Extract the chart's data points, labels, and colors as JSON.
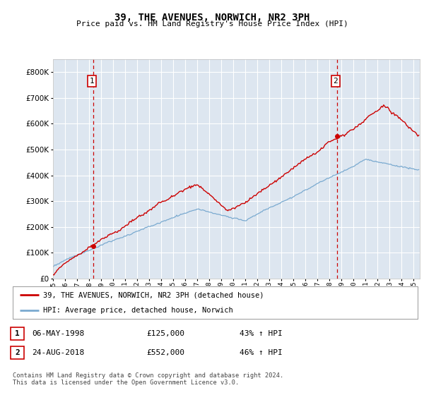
{
  "title": "39, THE AVENUES, NORWICH, NR2 3PH",
  "subtitle": "Price paid vs. HM Land Registry's House Price Index (HPI)",
  "ylim": [
    0,
    850000
  ],
  "yticks": [
    0,
    100000,
    200000,
    300000,
    400000,
    500000,
    600000,
    700000,
    800000
  ],
  "xlim_start": 1995.0,
  "xlim_end": 2025.5,
  "bg_color": "#dde6f0",
  "grid_color": "#ffffff",
  "property_color": "#cc0000",
  "hpi_color": "#7aaad0",
  "annotation_box_color": "#cc0000",
  "sale1_x": 1998.37,
  "sale1_y": 125000,
  "sale1_label": "1",
  "sale1_date": "06-MAY-1998",
  "sale1_price": "£125,000",
  "sale1_hpi": "43% ↑ HPI",
  "sale2_x": 2018.65,
  "sale2_y": 552000,
  "sale2_label": "2",
  "sale2_date": "24-AUG-2018",
  "sale2_price": "£552,000",
  "sale2_hpi": "46% ↑ HPI",
  "legend_property": "39, THE AVENUES, NORWICH, NR2 3PH (detached house)",
  "legend_hpi": "HPI: Average price, detached house, Norwich",
  "footer": "Contains HM Land Registry data © Crown copyright and database right 2024.\nThis data is licensed under the Open Government Licence v3.0.",
  "xticks": [
    1995,
    1996,
    1997,
    1998,
    1999,
    2000,
    2001,
    2002,
    2003,
    2004,
    2005,
    2006,
    2007,
    2008,
    2009,
    2010,
    2011,
    2012,
    2013,
    2014,
    2015,
    2016,
    2017,
    2018,
    2019,
    2020,
    2021,
    2022,
    2023,
    2024,
    2025
  ]
}
